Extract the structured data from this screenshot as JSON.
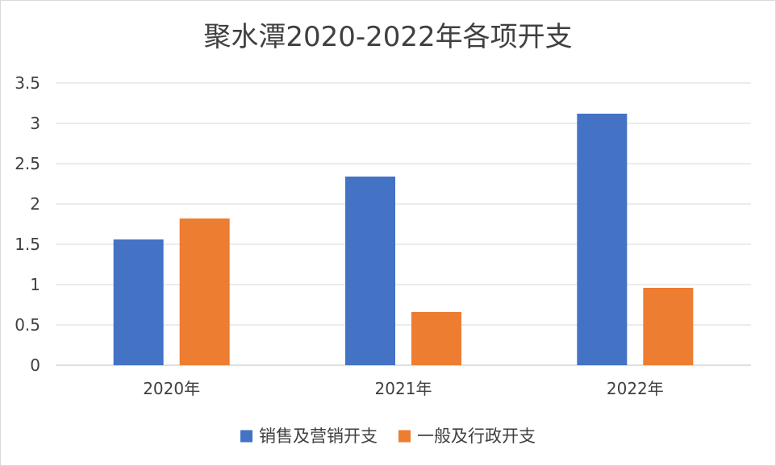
{
  "chart_data": {
    "type": "bar",
    "title": "聚水潭2020-2022年各项开支",
    "xlabel": "",
    "ylabel": "",
    "categories": [
      "2020年",
      "2021年",
      "2022年"
    ],
    "ylim": [
      0,
      3.5
    ],
    "yticks": [
      "0",
      "0.5",
      "1",
      "1.5",
      "2",
      "2.5",
      "3",
      "3.5"
    ],
    "grid": true,
    "legend_position": "bottom",
    "series": [
      {
        "name": "销售及营销开支",
        "color": "#4472C4",
        "values": [
          1.56,
          2.34,
          3.12
        ]
      },
      {
        "name": "一般及行政开支",
        "color": "#ED7D31",
        "values": [
          1.82,
          0.66,
          0.96
        ]
      }
    ]
  }
}
